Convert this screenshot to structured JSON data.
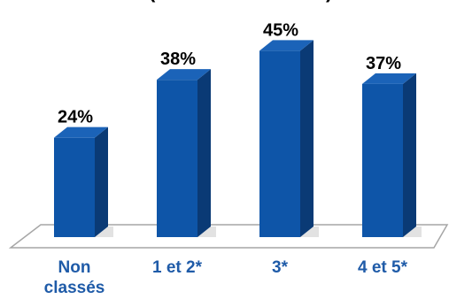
{
  "chart_data": {
    "type": "bar",
    "title": "(",
    "title_suffix": ")",
    "categories": [
      "Non classés",
      "1 et 2*",
      "3*",
      "4 et 5*"
    ],
    "category_lines": [
      [
        "Non",
        "classés"
      ],
      [
        "1 et 2*"
      ],
      [
        "3*"
      ],
      [
        "4 et 5*"
      ]
    ],
    "values": [
      24,
      38,
      45,
      37
    ],
    "value_labels": [
      "24%",
      "38%",
      "45%",
      "37%"
    ],
    "value_unit": "%",
    "ylim": [
      0,
      50
    ],
    "grid": false,
    "legend": "none",
    "style": "3d-column"
  },
  "colors": {
    "bar_front": "#0E55A8",
    "bar_side": "#0A3A75",
    "bar_top": "#1B63B8",
    "category_label": "#1F5BA8",
    "floor_stroke": "#A6A6A6",
    "shadow": "#CFCFCF"
  }
}
